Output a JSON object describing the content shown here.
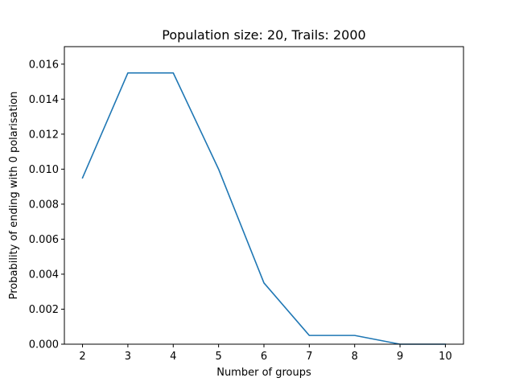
{
  "chart_data": {
    "type": "line",
    "title": "Population size: 20, Trails: 2000",
    "xlabel": "Number of groups",
    "ylabel": "Probability of ending with 0 polarisation",
    "x": [
      2,
      3,
      4,
      5,
      6,
      7,
      8,
      9,
      10
    ],
    "series": [
      {
        "values": [
          0.0095,
          0.0155,
          0.0155,
          0.01,
          0.0035,
          0.0005,
          0.0005,
          0.0,
          0.0
        ],
        "color": "#1f77b4"
      }
    ],
    "xticks": [
      "2",
      "3",
      "4",
      "5",
      "6",
      "7",
      "8",
      "9",
      "10"
    ],
    "yticks": [
      "0.000",
      "0.002",
      "0.004",
      "0.006",
      "0.008",
      "0.010",
      "0.012",
      "0.014",
      "0.016"
    ],
    "xlim": [
      1.6,
      10.4
    ],
    "ylim": [
      0,
      0.017
    ],
    "grid": false,
    "legend": "none"
  }
}
